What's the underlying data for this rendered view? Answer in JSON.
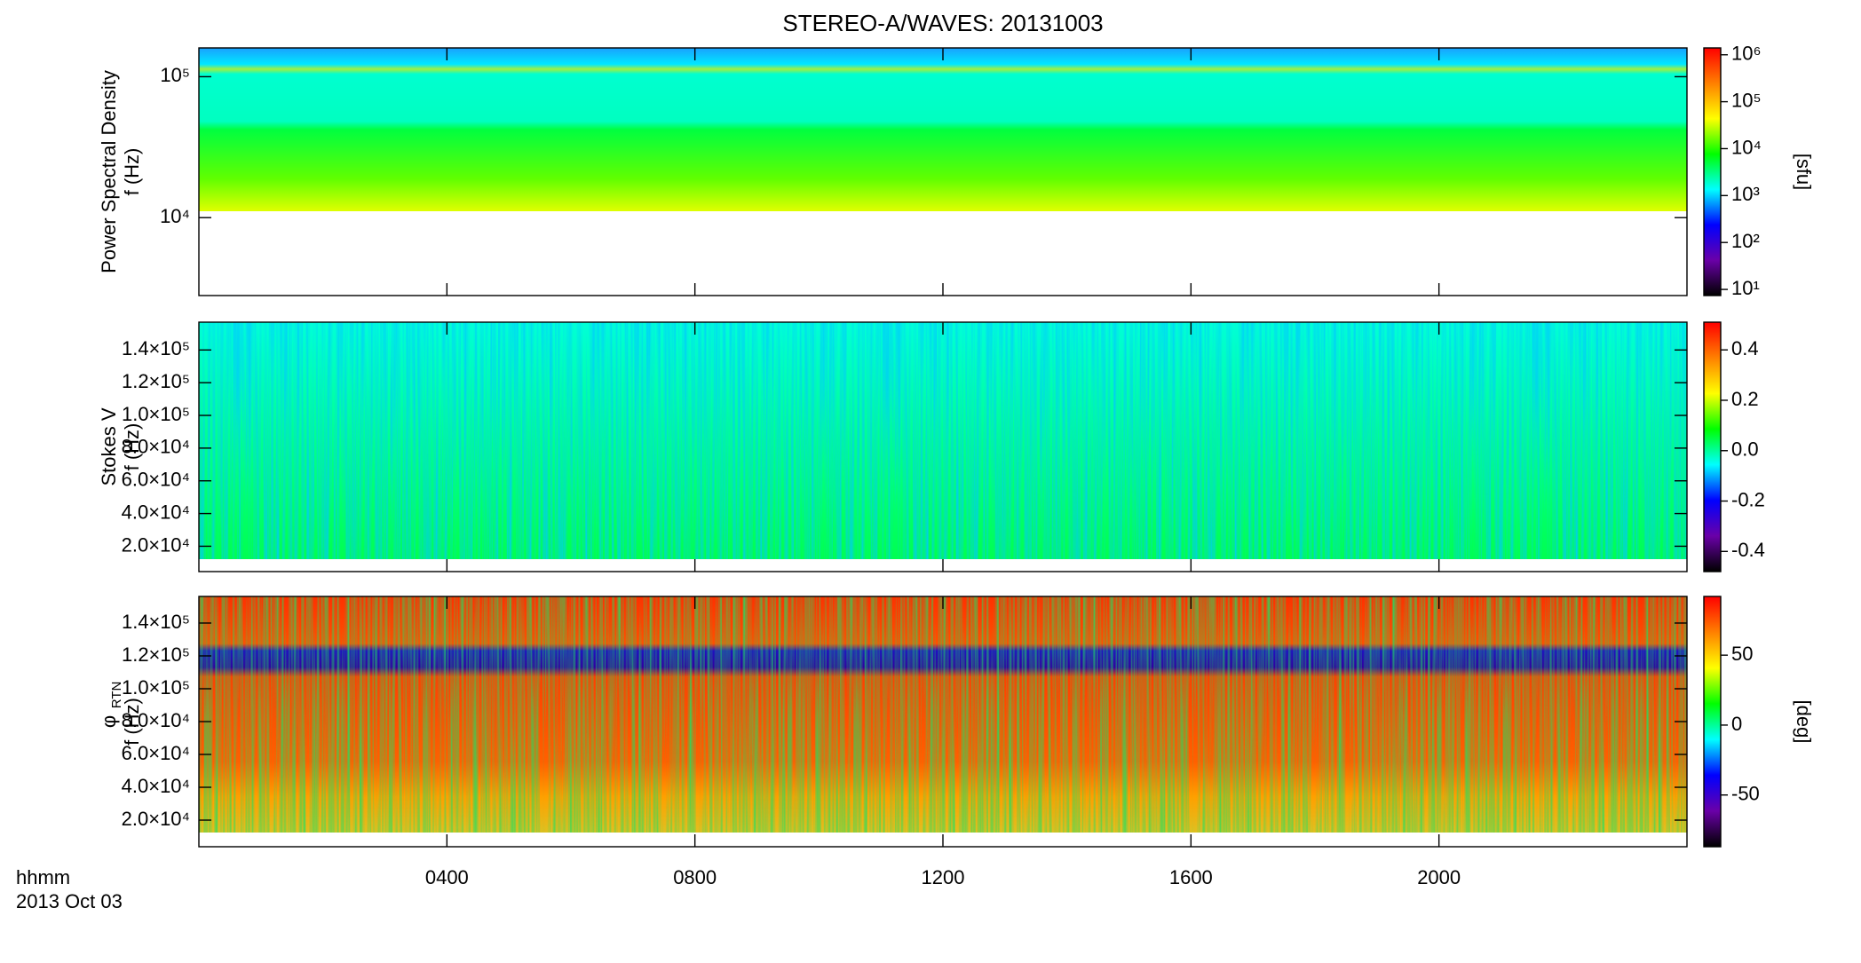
{
  "chart_data": {
    "type": "spectrogram",
    "title": "STEREO-A/WAVES: 20131003",
    "xlabel": "hhmm",
    "xsublabel": "2013 Oct 03",
    "xlim": [
      0,
      24
    ],
    "xticks": [
      {
        "value": 4,
        "label": "0400"
      },
      {
        "value": 8,
        "label": "0800"
      },
      {
        "value": 12,
        "label": "1200"
      },
      {
        "value": 16,
        "label": "1600"
      },
      {
        "value": 20,
        "label": "2000"
      }
    ],
    "colormap": [
      "#000000",
      "#6a00a8",
      "#0000ff",
      "#00ffff",
      "#00ff00",
      "#ffff00",
      "#ff8000",
      "#ff0000"
    ],
    "panels": [
      {
        "ylabel": [
          "Power Spectral Density",
          "f (Hz)"
        ],
        "yscale": "log",
        "ylim": [
          2800,
          160000
        ],
        "yticks": [
          {
            "value": 10000,
            "label": "10⁴"
          },
          {
            "value": 100000,
            "label": "10⁵"
          }
        ],
        "colorbar": {
          "label": "[sfu]",
          "scale": "log",
          "lim": [
            7.4,
            1400000
          ],
          "ticks": [
            {
              "value": 10,
              "label": "10¹"
            },
            {
              "value": 100,
              "label": "10²"
            },
            {
              "value": 1000,
              "label": "10³"
            },
            {
              "value": 10000,
              "label": "10⁴"
            },
            {
              "value": 100000,
              "label": "10⁵"
            },
            {
              "value": 1000000,
              "label": "10⁶"
            }
          ]
        }
      },
      {
        "ylabel": [
          "Stokes V",
          "f (Hz)"
        ],
        "yscale": "linear",
        "ylim": [
          4500,
          157000
        ],
        "yticks": [
          {
            "value": 20000,
            "label": "2.0×10⁴"
          },
          {
            "value": 40000,
            "label": "4.0×10⁴"
          },
          {
            "value": 60000,
            "label": "6.0×10⁴"
          },
          {
            "value": 80000,
            "label": "8.0×10⁴"
          },
          {
            "value": 100000,
            "label": "1.0×10⁵"
          },
          {
            "value": 120000,
            "label": "1.2×10⁵"
          },
          {
            "value": 140000,
            "label": "1.4×10⁵"
          }
        ],
        "colorbar": {
          "scale": "linear",
          "lim": [
            -0.48,
            0.51
          ],
          "ticks": [
            -0.4,
            -0.2,
            {
              "value": 0,
              "label": "0.0"
            },
            0.2,
            0.4
          ]
        }
      },
      {
        "ylabel": [
          "φ",
          "f (Hz)"
        ],
        "ylabel_subscript": "RTN",
        "yscale": "linear",
        "ylim": [
          3800,
          156200
        ],
        "yticks": [
          {
            "value": 20000,
            "label": "2.0×10⁴"
          },
          {
            "value": 40000,
            "label": "4.0×10⁴"
          },
          {
            "value": 60000,
            "label": "6.0×10⁴"
          },
          {
            "value": 80000,
            "label": "8.0×10⁴"
          },
          {
            "value": 100000,
            "label": "1.0×10⁵"
          },
          {
            "value": 120000,
            "label": "1.2×10⁵"
          },
          {
            "value": 140000,
            "label": "1.4×10⁵"
          }
        ],
        "colorbar": {
          "label": "[deg]",
          "scale": "linear",
          "lim": [
            -87,
            92
          ],
          "ticks": [
            -50,
            0,
            50
          ]
        }
      }
    ]
  }
}
